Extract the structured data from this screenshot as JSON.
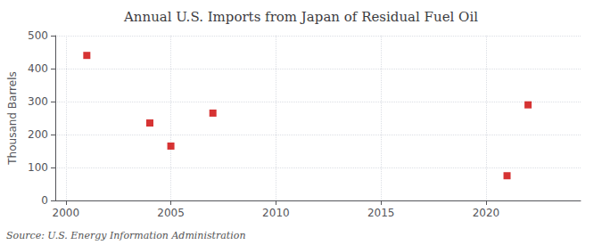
{
  "chart_data": {
    "type": "scatter",
    "title": "Annual U.S. Imports from Japan of Residual Fuel Oil",
    "ylabel": "Thousand Barrels",
    "annotation": "Source: U.S. Energy Information Administration",
    "x": [
      2001,
      2004,
      2005,
      2007,
      2021,
      2022
    ],
    "values": [
      440,
      235,
      165,
      265,
      75,
      290
    ],
    "color": "#cc0000",
    "marker": "square",
    "xlim": [
      1999.5,
      2024.5
    ],
    "xticks": [
      2000,
      2005,
      2010,
      2015,
      2020
    ],
    "ylim": [
      0,
      500
    ],
    "yticks": [
      0,
      100,
      200,
      300,
      400,
      500
    ],
    "grid": true
  }
}
